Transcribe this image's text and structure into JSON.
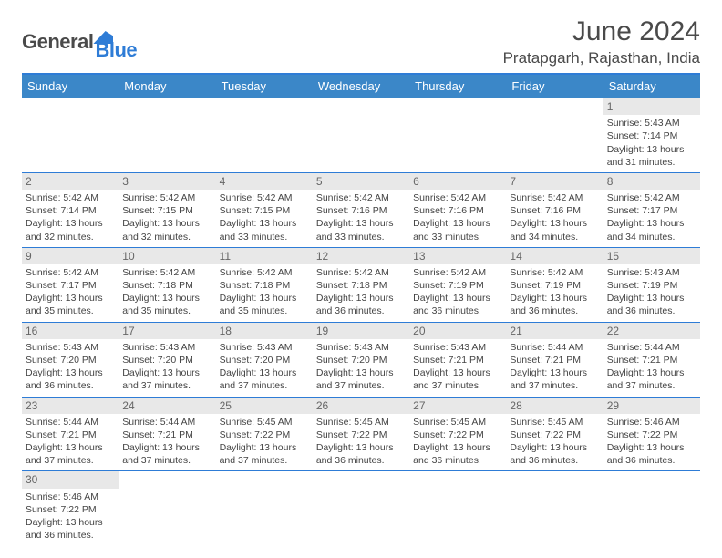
{
  "logo": {
    "part1": "General",
    "part2": "Blue"
  },
  "title": "June 2024",
  "location": "Pratapgarh, Rajasthan, India",
  "colors": {
    "header_bg": "#3b87c8",
    "accent": "#2e7cd6",
    "daynum_bg": "#e8e8e8",
    "text": "#4a4a4a"
  },
  "dayNames": [
    "Sunday",
    "Monday",
    "Tuesday",
    "Wednesday",
    "Thursday",
    "Friday",
    "Saturday"
  ],
  "weeks": [
    [
      null,
      null,
      null,
      null,
      null,
      null,
      {
        "n": "1",
        "sr": "Sunrise: 5:43 AM",
        "ss": "Sunset: 7:14 PM",
        "d1": "Daylight: 13 hours",
        "d2": "and 31 minutes."
      }
    ],
    [
      {
        "n": "2",
        "sr": "Sunrise: 5:42 AM",
        "ss": "Sunset: 7:14 PM",
        "d1": "Daylight: 13 hours",
        "d2": "and 32 minutes."
      },
      {
        "n": "3",
        "sr": "Sunrise: 5:42 AM",
        "ss": "Sunset: 7:15 PM",
        "d1": "Daylight: 13 hours",
        "d2": "and 32 minutes."
      },
      {
        "n": "4",
        "sr": "Sunrise: 5:42 AM",
        "ss": "Sunset: 7:15 PM",
        "d1": "Daylight: 13 hours",
        "d2": "and 33 minutes."
      },
      {
        "n": "5",
        "sr": "Sunrise: 5:42 AM",
        "ss": "Sunset: 7:16 PM",
        "d1": "Daylight: 13 hours",
        "d2": "and 33 minutes."
      },
      {
        "n": "6",
        "sr": "Sunrise: 5:42 AM",
        "ss": "Sunset: 7:16 PM",
        "d1": "Daylight: 13 hours",
        "d2": "and 33 minutes."
      },
      {
        "n": "7",
        "sr": "Sunrise: 5:42 AM",
        "ss": "Sunset: 7:16 PM",
        "d1": "Daylight: 13 hours",
        "d2": "and 34 minutes."
      },
      {
        "n": "8",
        "sr": "Sunrise: 5:42 AM",
        "ss": "Sunset: 7:17 PM",
        "d1": "Daylight: 13 hours",
        "d2": "and 34 minutes."
      }
    ],
    [
      {
        "n": "9",
        "sr": "Sunrise: 5:42 AM",
        "ss": "Sunset: 7:17 PM",
        "d1": "Daylight: 13 hours",
        "d2": "and 35 minutes."
      },
      {
        "n": "10",
        "sr": "Sunrise: 5:42 AM",
        "ss": "Sunset: 7:18 PM",
        "d1": "Daylight: 13 hours",
        "d2": "and 35 minutes."
      },
      {
        "n": "11",
        "sr": "Sunrise: 5:42 AM",
        "ss": "Sunset: 7:18 PM",
        "d1": "Daylight: 13 hours",
        "d2": "and 35 minutes."
      },
      {
        "n": "12",
        "sr": "Sunrise: 5:42 AM",
        "ss": "Sunset: 7:18 PM",
        "d1": "Daylight: 13 hours",
        "d2": "and 36 minutes."
      },
      {
        "n": "13",
        "sr": "Sunrise: 5:42 AM",
        "ss": "Sunset: 7:19 PM",
        "d1": "Daylight: 13 hours",
        "d2": "and 36 minutes."
      },
      {
        "n": "14",
        "sr": "Sunrise: 5:42 AM",
        "ss": "Sunset: 7:19 PM",
        "d1": "Daylight: 13 hours",
        "d2": "and 36 minutes."
      },
      {
        "n": "15",
        "sr": "Sunrise: 5:43 AM",
        "ss": "Sunset: 7:19 PM",
        "d1": "Daylight: 13 hours",
        "d2": "and 36 minutes."
      }
    ],
    [
      {
        "n": "16",
        "sr": "Sunrise: 5:43 AM",
        "ss": "Sunset: 7:20 PM",
        "d1": "Daylight: 13 hours",
        "d2": "and 36 minutes."
      },
      {
        "n": "17",
        "sr": "Sunrise: 5:43 AM",
        "ss": "Sunset: 7:20 PM",
        "d1": "Daylight: 13 hours",
        "d2": "and 37 minutes."
      },
      {
        "n": "18",
        "sr": "Sunrise: 5:43 AM",
        "ss": "Sunset: 7:20 PM",
        "d1": "Daylight: 13 hours",
        "d2": "and 37 minutes."
      },
      {
        "n": "19",
        "sr": "Sunrise: 5:43 AM",
        "ss": "Sunset: 7:20 PM",
        "d1": "Daylight: 13 hours",
        "d2": "and 37 minutes."
      },
      {
        "n": "20",
        "sr": "Sunrise: 5:43 AM",
        "ss": "Sunset: 7:21 PM",
        "d1": "Daylight: 13 hours",
        "d2": "and 37 minutes."
      },
      {
        "n": "21",
        "sr": "Sunrise: 5:44 AM",
        "ss": "Sunset: 7:21 PM",
        "d1": "Daylight: 13 hours",
        "d2": "and 37 minutes."
      },
      {
        "n": "22",
        "sr": "Sunrise: 5:44 AM",
        "ss": "Sunset: 7:21 PM",
        "d1": "Daylight: 13 hours",
        "d2": "and 37 minutes."
      }
    ],
    [
      {
        "n": "23",
        "sr": "Sunrise: 5:44 AM",
        "ss": "Sunset: 7:21 PM",
        "d1": "Daylight: 13 hours",
        "d2": "and 37 minutes."
      },
      {
        "n": "24",
        "sr": "Sunrise: 5:44 AM",
        "ss": "Sunset: 7:21 PM",
        "d1": "Daylight: 13 hours",
        "d2": "and 37 minutes."
      },
      {
        "n": "25",
        "sr": "Sunrise: 5:45 AM",
        "ss": "Sunset: 7:22 PM",
        "d1": "Daylight: 13 hours",
        "d2": "and 37 minutes."
      },
      {
        "n": "26",
        "sr": "Sunrise: 5:45 AM",
        "ss": "Sunset: 7:22 PM",
        "d1": "Daylight: 13 hours",
        "d2": "and 36 minutes."
      },
      {
        "n": "27",
        "sr": "Sunrise: 5:45 AM",
        "ss": "Sunset: 7:22 PM",
        "d1": "Daylight: 13 hours",
        "d2": "and 36 minutes."
      },
      {
        "n": "28",
        "sr": "Sunrise: 5:45 AM",
        "ss": "Sunset: 7:22 PM",
        "d1": "Daylight: 13 hours",
        "d2": "and 36 minutes."
      },
      {
        "n": "29",
        "sr": "Sunrise: 5:46 AM",
        "ss": "Sunset: 7:22 PM",
        "d1": "Daylight: 13 hours",
        "d2": "and 36 minutes."
      }
    ],
    [
      {
        "n": "30",
        "sr": "Sunrise: 5:46 AM",
        "ss": "Sunset: 7:22 PM",
        "d1": "Daylight: 13 hours",
        "d2": "and 36 minutes."
      },
      null,
      null,
      null,
      null,
      null,
      null
    ]
  ]
}
